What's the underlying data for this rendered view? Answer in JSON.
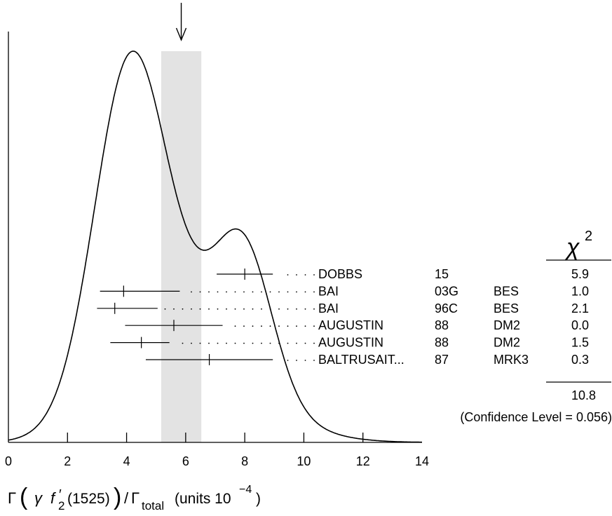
{
  "chart_data": {
    "type": "ideogram",
    "xlabel": {
      "base": "Γ",
      "open": "(",
      "gamma": "γ",
      "particle": "f",
      "prime": "′",
      "sub": "2",
      "mass": "(1525)",
      "close": ")",
      "slash": "/",
      "gamma2": "Γ",
      "total": "total",
      "units": "(units 10",
      "exp": "−4",
      "units_close": ")"
    },
    "xlim": [
      0,
      14
    ],
    "ticks": [
      "0",
      "2",
      "4",
      "6",
      "8",
      "10",
      "12",
      "14"
    ],
    "tick_values": [
      0,
      2,
      4,
      6,
      8,
      10,
      12,
      14
    ],
    "weighted_average": 5.85,
    "average_band": [
      5.17,
      6.53
    ],
    "chi2_header": "χ",
    "chi2_header_exp": "2",
    "measurements": [
      {
        "value": 8.0,
        "low": 7.05,
        "high": 8.95,
        "author": "DOBBS",
        "year": "15",
        "tech": "",
        "chi2": "5.9"
      },
      {
        "value": 3.9,
        "low": 3.1,
        "high": 5.8,
        "author": "BAI",
        "year": "03G",
        "tech": "BES",
        "chi2": "1.0"
      },
      {
        "value": 3.6,
        "low": 3.0,
        "high": 5.05,
        "author": "BAI",
        "year": "96C",
        "tech": "BES",
        "chi2": "2.1"
      },
      {
        "value": 5.6,
        "low": 3.95,
        "high": 7.25,
        "author": "AUGUSTIN",
        "year": "88",
        "tech": "DM2",
        "chi2": "0.0"
      },
      {
        "value": 4.5,
        "low": 3.45,
        "high": 5.45,
        "author": "AUGUSTIN",
        "year": "88",
        "tech": "DM2",
        "chi2": "1.5"
      },
      {
        "value": 6.8,
        "low": 4.65,
        "high": 8.95,
        "author": "BALTRUSAIT...",
        "year": "87",
        "tech": "MRK3",
        "chi2": "0.3"
      }
    ],
    "chi2_total": "10.8",
    "confidence_level": "(Confidence Level = 0.056)"
  }
}
